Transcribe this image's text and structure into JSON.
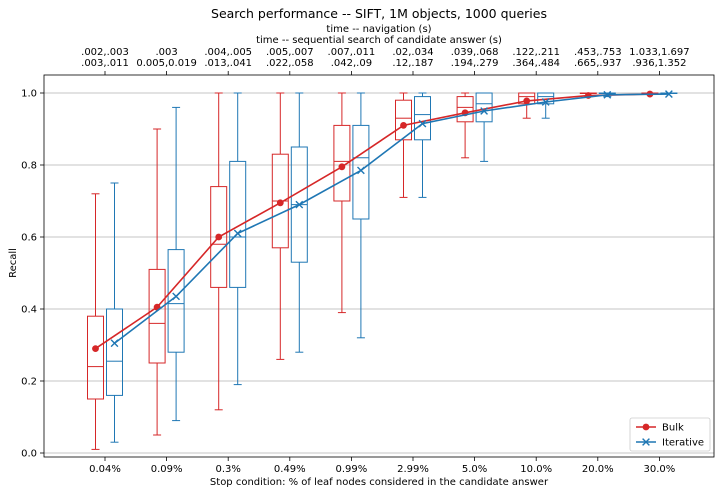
{
  "chart_data": {
    "type": "box+line",
    "title": "Search performance -- SIFT, 1M objects, 1000 queries",
    "top_axis_title_1": "time -- navigation (s)",
    "top_axis_title_2": "time -- sequential search of candidate answer (s)",
    "xlabel": "Stop condition: % of leaf nodes considered in the candidate answer",
    "ylabel": "Recall",
    "ylim": [
      0,
      1.05
    ],
    "yticks": [
      "0.0",
      "0.2",
      "0.4",
      "0.6",
      "0.8",
      "1.0"
    ],
    "grid": "horizontal",
    "legend_position": "lower-right",
    "categories": [
      "0.04%",
      "0.09%",
      "0.3%",
      "0.49%",
      "0.99%",
      "2.99%",
      "5.0%",
      "10.0%",
      "20.0%",
      "30.0%"
    ],
    "top_labels_line1": [
      ".002,.003",
      ".003",
      ".004,.005",
      ".005,.007",
      ".007,.011",
      ".02,.034",
      ".039,.068",
      ".122,.211",
      ".453,.753",
      "1.033,1.697"
    ],
    "top_labels_line2": [
      ".003,.011",
      "0.005,0.019",
      ".013,.041",
      ".022,.058",
      ".042,.09",
      ".12,.187",
      ".194,.279",
      ".364,.484",
      ".665,.937",
      ".936,1.352"
    ],
    "colors": {
      "Bulk": "#d62728",
      "Iterative": "#1f77b4"
    },
    "series": [
      {
        "name": "Bulk",
        "marker": "circle",
        "means": [
          0.29,
          0.405,
          0.6,
          0.695,
          0.795,
          0.91,
          0.945,
          0.978,
          0.993,
          0.997
        ],
        "boxes": [
          {
            "whislo": 0.01,
            "q1": 0.15,
            "med": 0.24,
            "q3": 0.38,
            "whishi": 0.72
          },
          {
            "whislo": 0.05,
            "q1": 0.25,
            "med": 0.36,
            "q3": 0.51,
            "whishi": 0.9
          },
          {
            "whislo": 0.12,
            "q1": 0.46,
            "med": 0.58,
            "q3": 0.74,
            "whishi": 1.0
          },
          {
            "whislo": 0.26,
            "q1": 0.57,
            "med": 0.7,
            "q3": 0.83,
            "whishi": 1.0
          },
          {
            "whislo": 0.39,
            "q1": 0.7,
            "med": 0.81,
            "q3": 0.91,
            "whishi": 1.0
          },
          {
            "whislo": 0.71,
            "q1": 0.87,
            "med": 0.93,
            "q3": 0.98,
            "whishi": 1.0
          },
          {
            "whislo": 0.82,
            "q1": 0.92,
            "med": 0.96,
            "q3": 0.99,
            "whishi": 1.0
          },
          {
            "whislo": 0.93,
            "q1": 0.97,
            "med": 0.99,
            "q3": 1.0,
            "whishi": 1.0
          },
          {
            "whislo": 0.99,
            "q1": 1.0,
            "med": 1.0,
            "q3": 1.0,
            "whishi": 1.0
          },
          {
            "whislo": 1.0,
            "q1": 1.0,
            "med": 1.0,
            "q3": 1.0,
            "whishi": 1.0
          }
        ]
      },
      {
        "name": "Iterative",
        "marker": "x",
        "means": [
          0.305,
          0.435,
          0.61,
          0.69,
          0.785,
          0.915,
          0.95,
          0.975,
          0.995,
          0.997
        ],
        "boxes": [
          {
            "whislo": 0.03,
            "q1": 0.16,
            "med": 0.255,
            "q3": 0.4,
            "whishi": 0.75
          },
          {
            "whislo": 0.09,
            "q1": 0.28,
            "med": 0.415,
            "q3": 0.565,
            "whishi": 0.96
          },
          {
            "whislo": 0.19,
            "q1": 0.46,
            "med": 0.6,
            "q3": 0.81,
            "whishi": 1.0
          },
          {
            "whislo": 0.28,
            "q1": 0.53,
            "med": 0.69,
            "q3": 0.85,
            "whishi": 1.0
          },
          {
            "whislo": 0.32,
            "q1": 0.65,
            "med": 0.82,
            "q3": 0.91,
            "whishi": 1.0
          },
          {
            "whislo": 0.71,
            "q1": 0.87,
            "med": 0.94,
            "q3": 0.99,
            "whishi": 1.0
          },
          {
            "whislo": 0.81,
            "q1": 0.92,
            "med": 0.97,
            "q3": 1.0,
            "whishi": 1.0
          },
          {
            "whislo": 0.93,
            "q1": 0.97,
            "med": 0.99,
            "q3": 1.0,
            "whishi": 1.0
          },
          {
            "whislo": 0.99,
            "q1": 1.0,
            "med": 1.0,
            "q3": 1.0,
            "whishi": 1.0
          },
          {
            "whislo": 1.0,
            "q1": 1.0,
            "med": 1.0,
            "q3": 1.0,
            "whishi": 1.0
          }
        ]
      }
    ]
  }
}
